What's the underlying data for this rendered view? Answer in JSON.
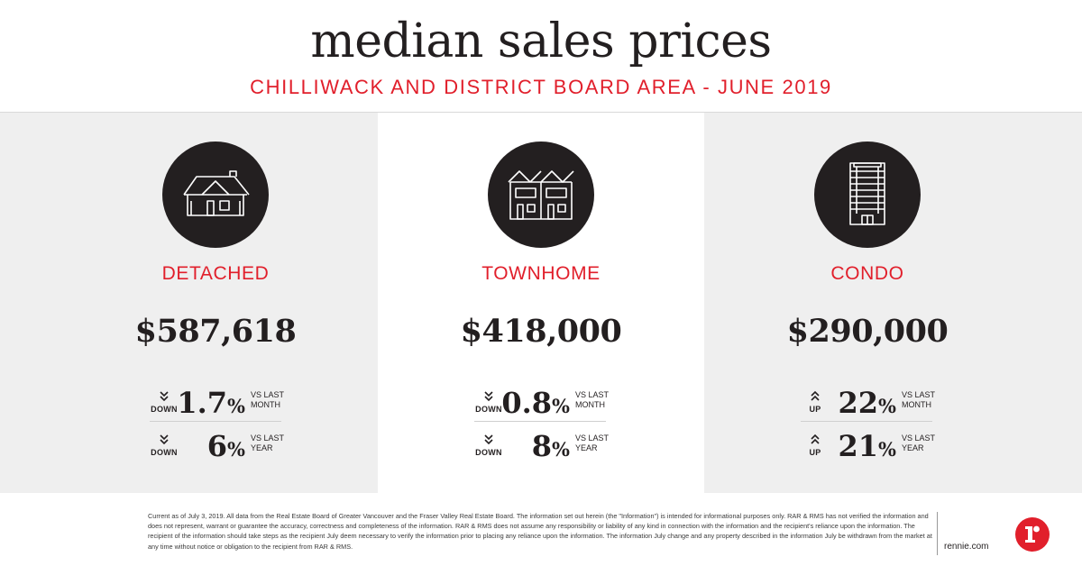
{
  "header": {
    "title": "median sales prices",
    "subtitle": "CHILLIWACK AND DISTRICT BOARD AREA - JUNE 2019"
  },
  "colors": {
    "accent": "#e11f2b",
    "panel_gray": "#efefef",
    "dark": "#231f20"
  },
  "panels": [
    {
      "icon": "detached-house-icon",
      "type": "DETACHED",
      "price": "$587,618",
      "stats": [
        {
          "direction": "DOWN",
          "value": "1.7",
          "unit": "%",
          "vs_line1": "VS LAST",
          "vs_line2": "MONTH"
        },
        {
          "direction": "DOWN",
          "value": "6",
          "unit": "%",
          "vs_line1": "VS LAST",
          "vs_line2": "YEAR"
        }
      ]
    },
    {
      "icon": "townhome-icon",
      "type": "TOWNHOME",
      "price": "$418,000",
      "stats": [
        {
          "direction": "DOWN",
          "value": "0.8",
          "unit": "%",
          "vs_line1": "VS LAST",
          "vs_line2": "MONTH"
        },
        {
          "direction": "DOWN",
          "value": "8",
          "unit": "%",
          "vs_line1": "VS LAST",
          "vs_line2": "YEAR"
        }
      ]
    },
    {
      "icon": "condo-tower-icon",
      "type": "CONDO",
      "price": "$290,000",
      "stats": [
        {
          "direction": "UP",
          "value": "22",
          "unit": "%",
          "vs_line1": "VS LAST",
          "vs_line2": "MONTH"
        },
        {
          "direction": "UP",
          "value": "21",
          "unit": "%",
          "vs_line1": "VS LAST",
          "vs_line2": "YEAR"
        }
      ]
    }
  ],
  "footer": {
    "disclaimer": "Current as of July 3, 2019. All data from the Real Estate Board of Greater Vancouver and the Fraser Valley Real Estate Board. The information set out herein (the \"Information\") is intended for informational purposes only. RAR & RMS has not verified the information and does not represent, warrant or guarantee the accuracy, correctness and completeness of the information. RAR & RMS does not assume any responsibility or liability of any kind in connection with the information and the recipient's reliance upon the information. The recipient of the information should take steps as the recipient July deem necessary to verify the information prior to placing any reliance upon the information. The information July change and any property described in the information July be withdrawn from the market at any time without notice or obligation to the recipient from RAR & RMS.",
    "url": "rennie.com",
    "logo_letter": "r"
  }
}
